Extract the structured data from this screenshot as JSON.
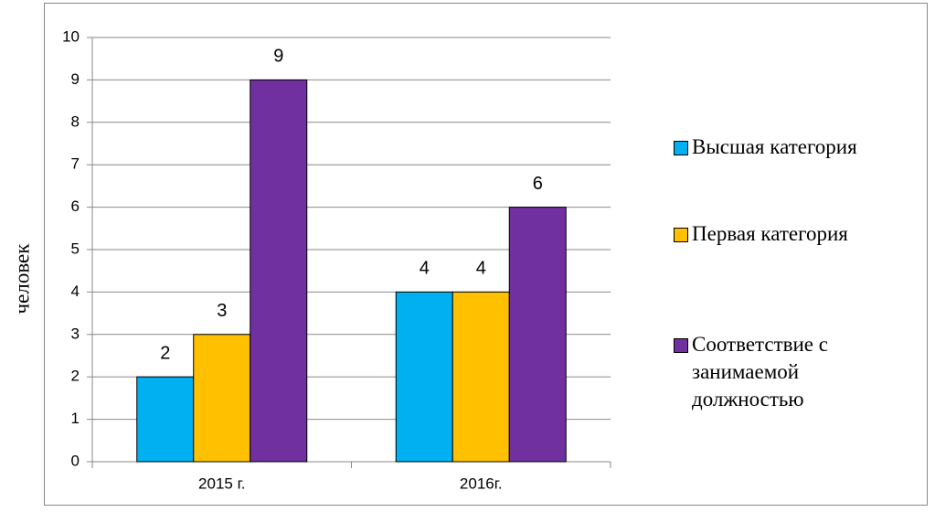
{
  "chart_data": {
    "type": "bar",
    "y_label": "человек",
    "categories": [
      "2015 г.",
      "2016г."
    ],
    "series": [
      {
        "name": "Высшая категория",
        "color": "#00b0f0",
        "values": [
          2,
          4
        ]
      },
      {
        "name": "Первая категория",
        "color": "#ffc000",
        "values": [
          3,
          4
        ]
      },
      {
        "name": "Соответствие с занимаемой должностью",
        "color": "#7030a0",
        "values": [
          9,
          6
        ]
      }
    ],
    "ylim": [
      0,
      10
    ],
    "yticks": [
      0,
      1,
      2,
      3,
      4,
      5,
      6,
      7,
      8,
      9,
      10
    ],
    "grid": true,
    "legend_position": "right",
    "data_labels": true
  }
}
